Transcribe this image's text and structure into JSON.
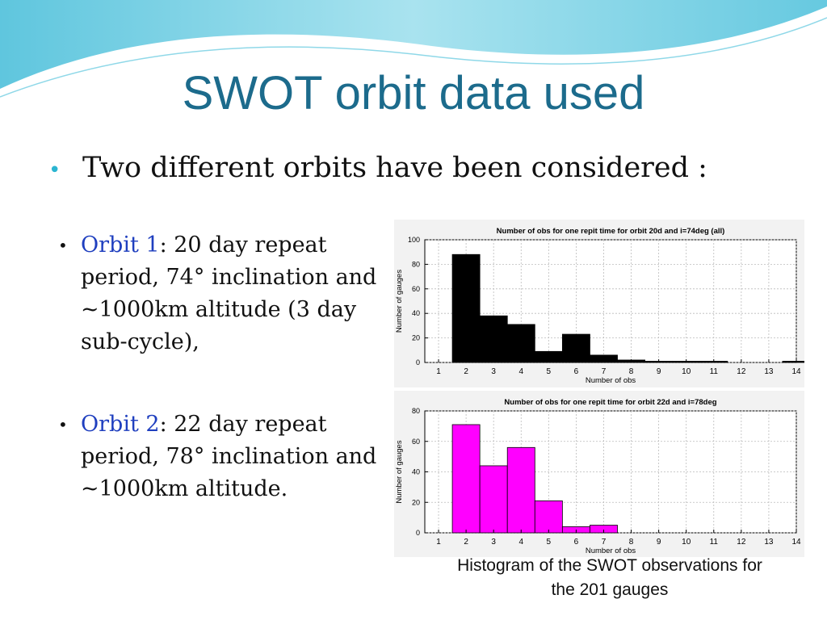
{
  "title": "SWOT orbit data used",
  "intro": "Two different orbits have been considered :",
  "bullet_char": "•",
  "orbits": [
    {
      "name": "Orbit 1",
      "rest": ": 20 day repeat period, 74° inclination and ~1000km altitude (3 day sub-cycle),"
    },
    {
      "name": "Orbit 2",
      "rest": ": 22 day repeat period, 78° inclination and ~1000km altitude."
    }
  ],
  "caption_line1": "Histogram of the SWOT observations for",
  "caption_line2": "the 201 gauges",
  "colors": {
    "title": "#1c6b8c",
    "orbit_name": "#1f3fbf",
    "bullet": "#2bb5d1",
    "series1": "#000000",
    "series2": "#ff00ff"
  },
  "chart_data": [
    {
      "type": "bar",
      "title": "Number of obs for one repit time for orbit 20d and i=74deg (all)",
      "xlabel": "Number of obs",
      "ylabel": "Number of gauges",
      "x": [
        2,
        3,
        4,
        5,
        6,
        7,
        8,
        9,
        10,
        11,
        12,
        13,
        14
      ],
      "values": [
        88,
        38,
        31,
        9,
        23,
        6,
        2,
        1,
        1,
        1,
        0,
        0,
        1
      ],
      "xlim": [
        0.5,
        14
      ],
      "ylim": [
        0,
        100
      ],
      "xticks": [
        1,
        2,
        3,
        4,
        5,
        6,
        7,
        8,
        9,
        10,
        11,
        12,
        13,
        14
      ],
      "yticks": [
        0,
        20,
        40,
        60,
        80,
        100
      ],
      "grid": true,
      "color": "#000000"
    },
    {
      "type": "bar",
      "title": "Number of obs for one repit time for orbit 22d and i=78deg",
      "xlabel": "Number of obs",
      "ylabel": "Number of gauges",
      "x": [
        2,
        3,
        4,
        5,
        6,
        7
      ],
      "values": [
        71,
        44,
        56,
        21,
        4,
        5
      ],
      "xlim": [
        0.5,
        14
      ],
      "ylim": [
        0,
        80
      ],
      "xticks": [
        1,
        2,
        3,
        4,
        5,
        6,
        7,
        8,
        9,
        10,
        11,
        12,
        13,
        14
      ],
      "yticks": [
        0,
        20,
        40,
        60,
        80
      ],
      "grid": true,
      "color": "#ff00ff"
    }
  ]
}
